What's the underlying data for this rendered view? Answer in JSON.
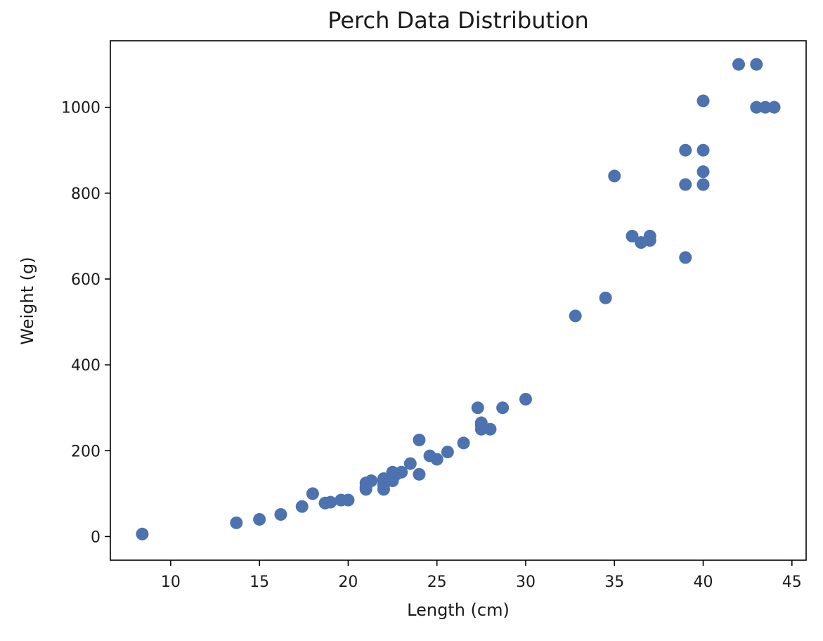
{
  "chart_data": {
    "type": "scatter",
    "title": "Perch Data Distribution",
    "xlabel": "Length (cm)",
    "ylabel": "Weight (g)",
    "xlim": [
      6.6,
      45.8
    ],
    "ylim": [
      -55,
      1155
    ],
    "xticks": [
      10,
      15,
      20,
      25,
      30,
      35,
      40,
      45
    ],
    "yticks": [
      0,
      200,
      400,
      600,
      800,
      1000
    ],
    "grid": false,
    "marker_color": "#4c72b0",
    "x": [
      8.4,
      13.7,
      15.0,
      16.2,
      17.4,
      18.0,
      18.7,
      19.0,
      19.6,
      20.0,
      21.0,
      21.0,
      21.0,
      21.3,
      22.0,
      22.0,
      22.0,
      22.0,
      22.0,
      22.5,
      22.5,
      22.7,
      23.0,
      23.5,
      24.0,
      24.0,
      24.6,
      25.0,
      25.6,
      26.5,
      27.3,
      27.5,
      27.5,
      27.5,
      28.0,
      28.7,
      30.0,
      32.8,
      34.5,
      35.0,
      36.5,
      36.0,
      37.0,
      37.0,
      39.0,
      39.0,
      39.0,
      40.0,
      40.0,
      40.0,
      40.0,
      42.0,
      43.0,
      43.0,
      43.5,
      44.0
    ],
    "y": [
      5.9,
      32.0,
      40.0,
      51.5,
      70.0,
      100.0,
      78.0,
      80.0,
      85.0,
      85.0,
      110.0,
      115.0,
      125.0,
      130.0,
      120.0,
      120.0,
      130.0,
      135.0,
      110.0,
      130.0,
      150.0,
      145.0,
      150.0,
      170.0,
      225.0,
      145.0,
      188.0,
      180.0,
      197.0,
      218.0,
      300.0,
      260.0,
      265.0,
      250.0,
      250.0,
      300.0,
      320.0,
      514.0,
      556.0,
      840.0,
      685.0,
      700.0,
      700.0,
      690.0,
      900.0,
      650.0,
      820.0,
      850.0,
      900.0,
      1015.0,
      820.0,
      1100.0,
      1000.0,
      1100.0,
      1000.0,
      1000.0
    ]
  }
}
